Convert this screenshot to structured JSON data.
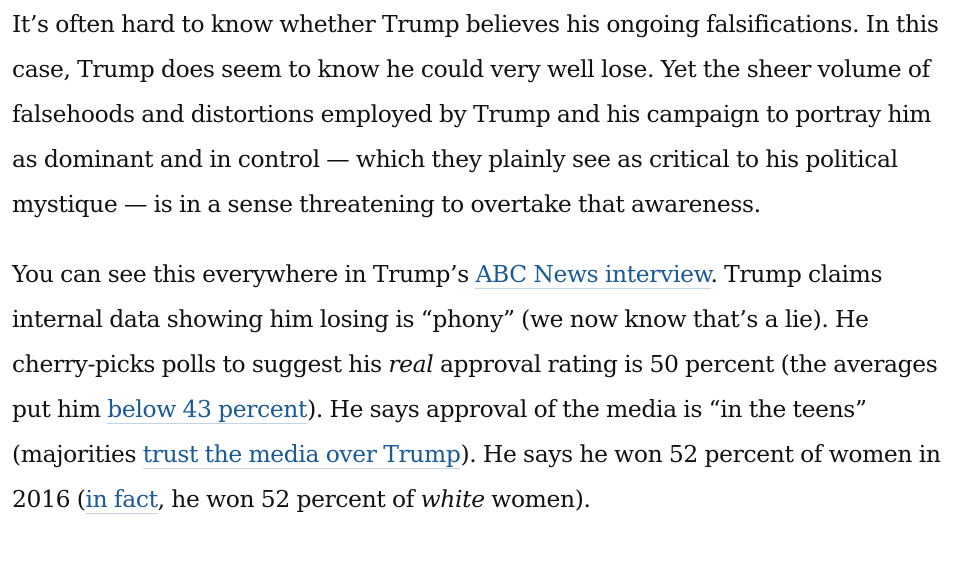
{
  "article": {
    "paragraphs": [
      {
        "segments": [
          {
            "type": "text",
            "text": "It’s often hard to know whether Trump believes his ongoing falsifications. In this case, Trump does seem to know he could very well lose. Yet the sheer volume of falsehoods and distortions employed by Trump and his campaign to portray him as dominant and in control — which they plainly see as critical to his political mystique — is in a sense threatening to overtake that awareness."
          }
        ]
      },
      {
        "segments": [
          {
            "type": "text",
            "text": "You can see this everywhere in Trump’s "
          },
          {
            "type": "link",
            "text": "ABC News interview",
            "name": "abc-news-interview-link"
          },
          {
            "type": "text",
            "text": ". Trump claims internal data showing him losing is “phony” (we now know that’s a lie). He cherry-picks polls to suggest his "
          },
          {
            "type": "em",
            "text": "real"
          },
          {
            "type": "text",
            "text": " approval rating is 50 percent (the averages put him "
          },
          {
            "type": "link",
            "text": "below 43 percent",
            "name": "below-43-percent-link"
          },
          {
            "type": "text",
            "text": "). He says approval of the media is “in the teens” (majorities "
          },
          {
            "type": "link",
            "text": "trust the media over Trump",
            "name": "trust-media-over-trump-link"
          },
          {
            "type": "text",
            "text": "). He says he won 52 percent of women in 2016 ("
          },
          {
            "type": "link",
            "text": "in fact",
            "name": "in-fact-link"
          },
          {
            "type": "text",
            "text": ", he won 52 percent of "
          },
          {
            "type": "em",
            "text": "white"
          },
          {
            "type": "text",
            "text": " women)."
          }
        ]
      }
    ]
  },
  "colors": {
    "text": "#111111",
    "link": "#1a5a96",
    "link_underline": "#c4d3e3",
    "background": "#ffffff"
  }
}
